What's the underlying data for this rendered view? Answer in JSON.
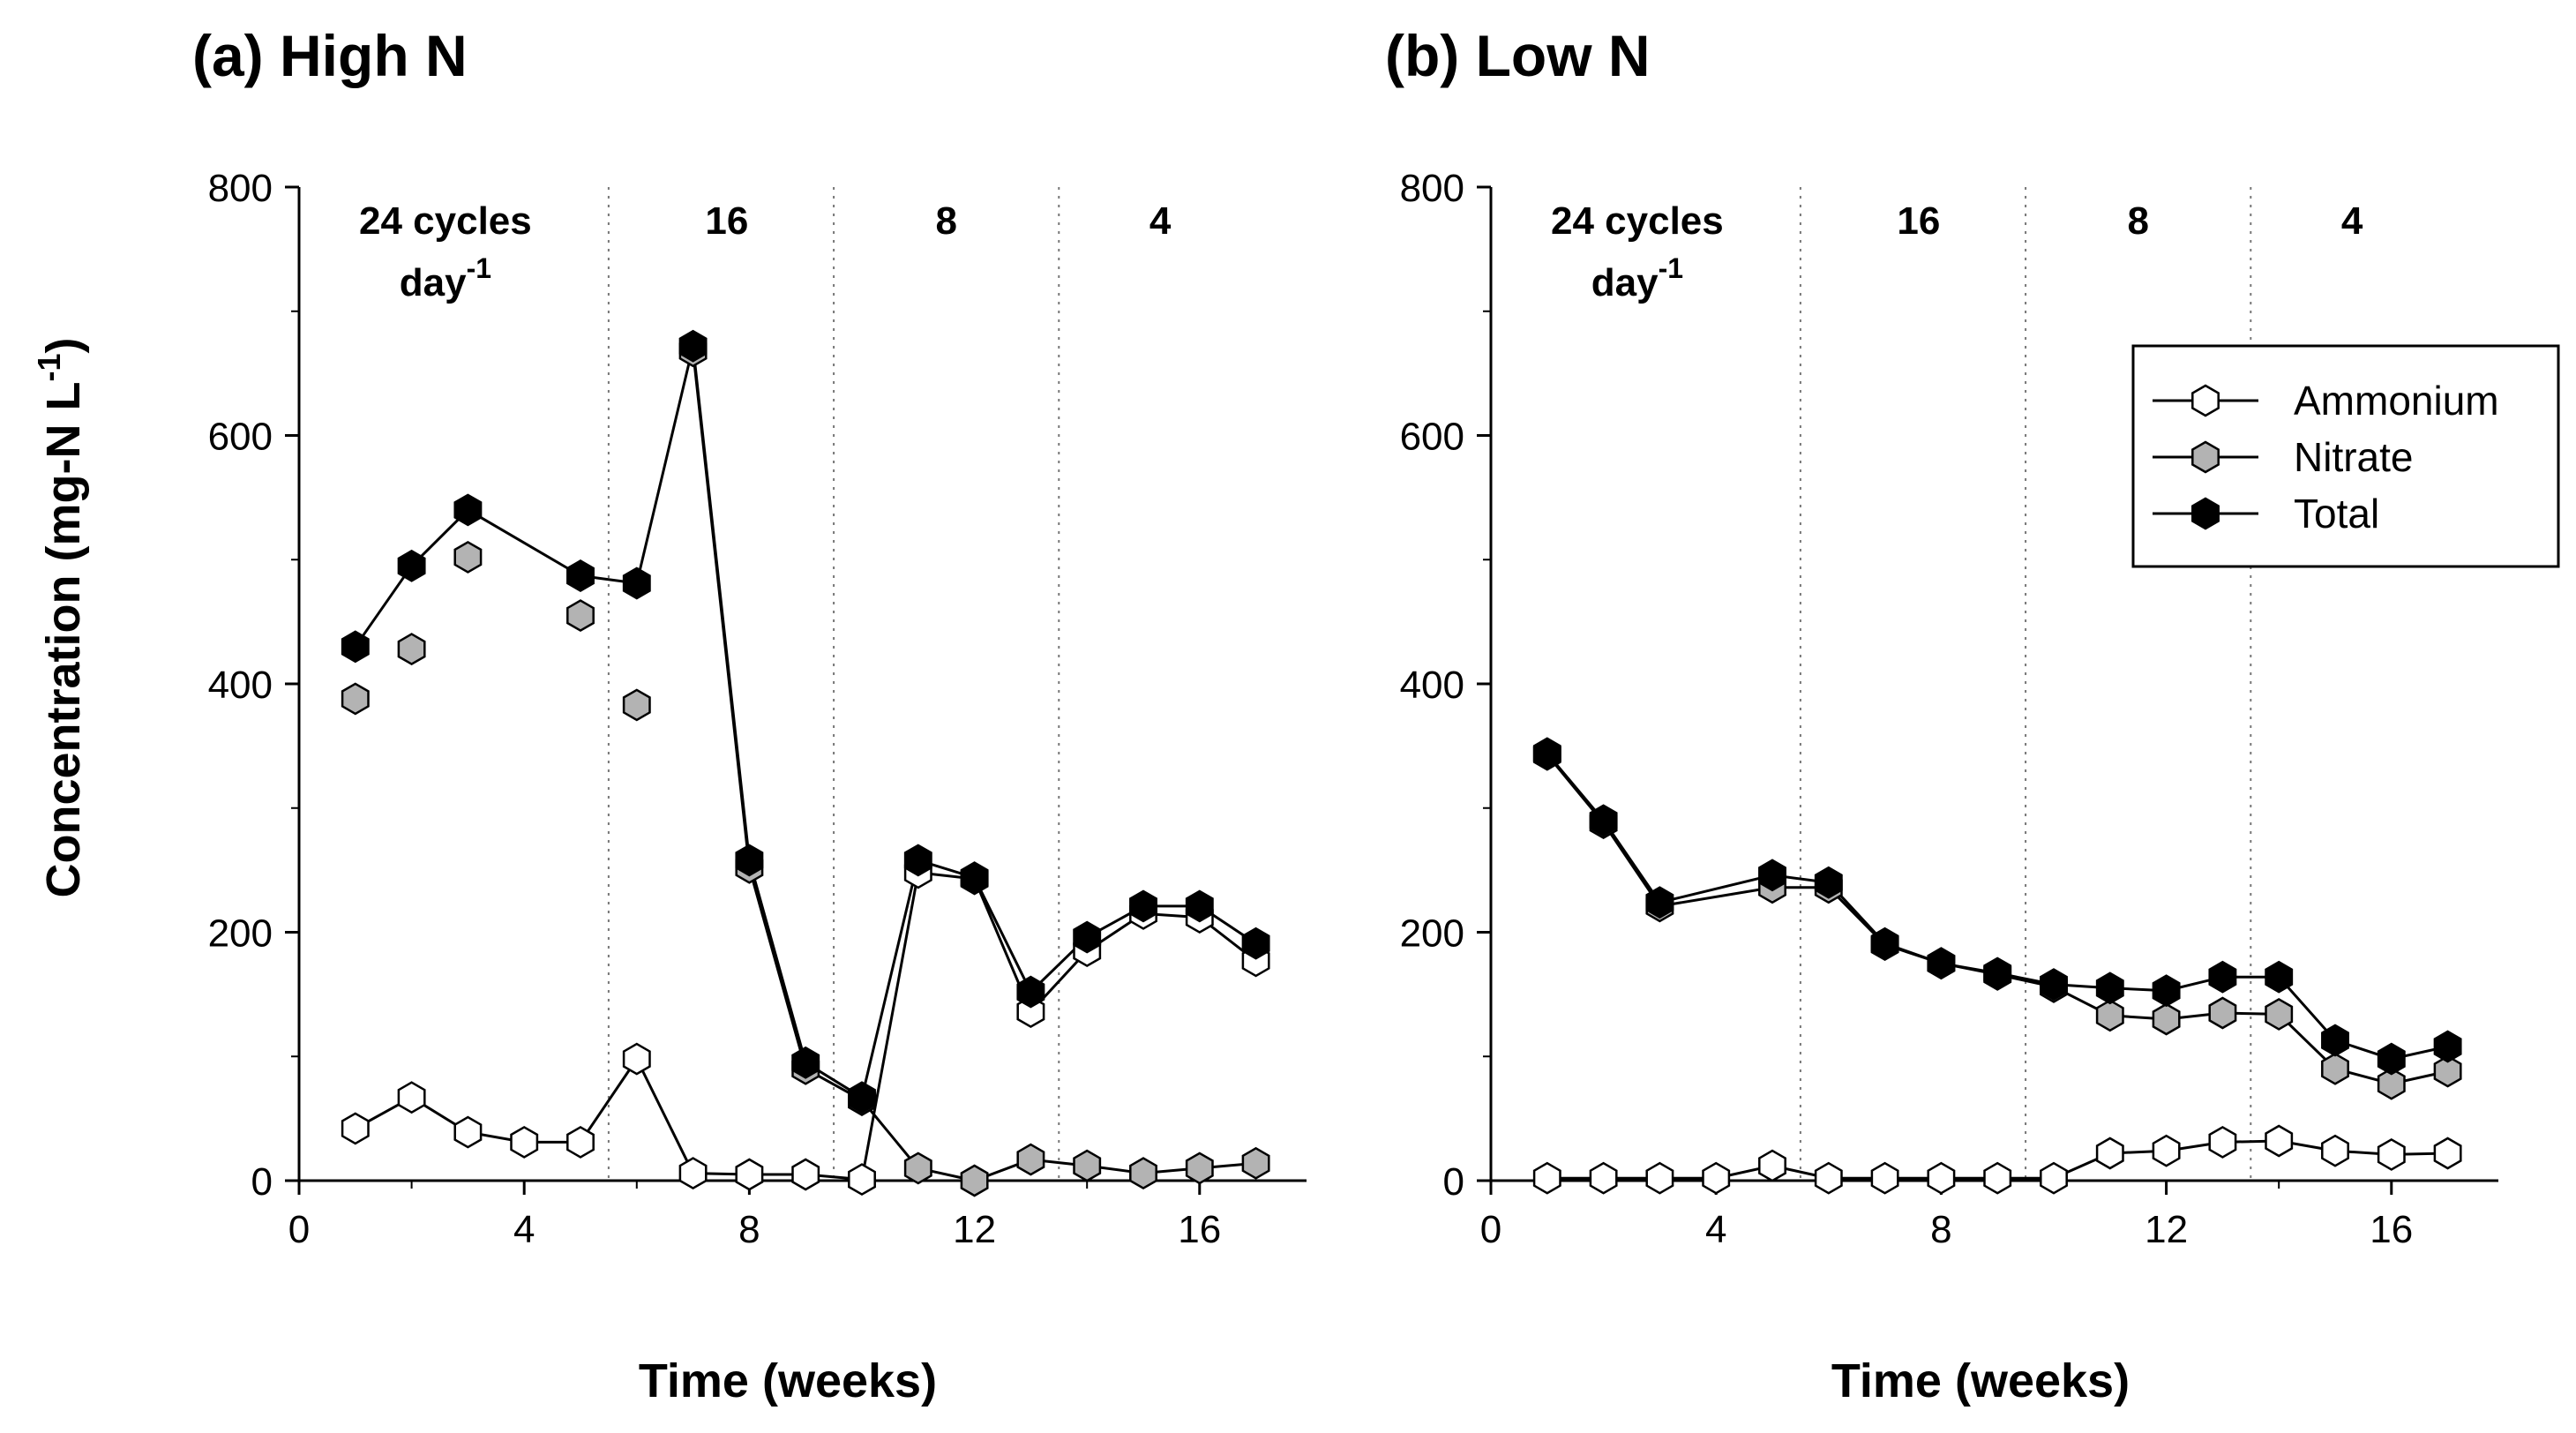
{
  "chart_data": [
    {
      "type": "line",
      "title": "(a) High N",
      "xlabel": "Time (weeks)",
      "ylabel": "Concentration (mg-N L",
      "ylabel_sup": "-1",
      "ylabel_close": ")",
      "xlim": [
        0,
        17.9
      ],
      "ylim": [
        0,
        800
      ],
      "xticks": [
        0,
        4,
        8,
        12,
        16
      ],
      "yticks": [
        0,
        200,
        400,
        600,
        800
      ],
      "phase_boundaries": [
        5.5,
        9.5,
        13.5
      ],
      "phases": [
        {
          "label": "24 cycles",
          "label2": "day",
          "sup": "-1",
          "x": 2.6
        },
        {
          "label": "16",
          "x": 7.6
        },
        {
          "label": "8",
          "x": 11.5
        },
        {
          "label": "4",
          "x": 15.3
        }
      ],
      "series": [
        {
          "name": "Ammonium",
          "fill": "#ffffff",
          "points": [
            [
              1,
              42
            ],
            [
              2,
              67
            ],
            [
              3,
              39
            ],
            [
              4,
              31
            ],
            [
              5,
              31
            ],
            [
              6,
              98
            ],
            [
              7,
              6
            ],
            [
              8,
              5
            ],
            [
              9,
              5
            ],
            [
              10,
              1
            ],
            [
              11,
              248
            ],
            [
              12,
              243
            ],
            [
              13,
              136
            ],
            [
              14,
              185
            ],
            [
              15,
              215
            ],
            [
              16,
              212
            ],
            [
              17,
              177
            ]
          ],
          "connected": true
        },
        {
          "name": "Nitrate",
          "fill": "#b3b3b3",
          "points": [
            [
              1,
              388
            ],
            [
              2,
              428
            ],
            [
              3,
              502
            ],
            [
              5,
              455
            ],
            [
              6,
              383
            ],
            [
              7,
              668
            ],
            [
              8,
              252
            ],
            [
              9,
              90
            ],
            [
              10,
              65
            ],
            [
              11,
              10
            ],
            [
              12,
              0
            ],
            [
              13,
              17
            ],
            [
              14,
              12
            ],
            [
              15,
              6
            ],
            [
              16,
              10
            ],
            [
              17,
              14
            ]
          ],
          "connected": false,
          "segments": [
            [
              7,
              8
            ],
            [
              8,
              9
            ],
            [
              9,
              10
            ],
            [
              10,
              11
            ],
            [
              11,
              12
            ],
            [
              12,
              13
            ],
            [
              13,
              14
            ],
            [
              14,
              15
            ],
            [
              15,
              16
            ],
            [
              16,
              17
            ]
          ]
        },
        {
          "name": "Total",
          "fill": "#000000",
          "points": [
            [
              1,
              430
            ],
            [
              2,
              495
            ],
            [
              3,
              540
            ],
            [
              5,
              487
            ],
            [
              6,
              481
            ],
            [
              7,
              672
            ],
            [
              8,
              258
            ],
            [
              9,
              95
            ],
            [
              10,
              67
            ],
            [
              11,
              258
            ],
            [
              12,
              244
            ],
            [
              13,
              152
            ],
            [
              14,
              196
            ],
            [
              15,
              221
            ],
            [
              16,
              221
            ],
            [
              17,
              191
            ]
          ],
          "connected": true
        }
      ]
    },
    {
      "type": "line",
      "title": "(b) Low N",
      "xlabel": "Time (weeks)",
      "xlim": [
        0,
        17.9
      ],
      "ylim": [
        0,
        800
      ],
      "xticks": [
        0,
        4,
        8,
        12,
        16
      ],
      "yticks": [
        0,
        200,
        400,
        600,
        800
      ],
      "phase_boundaries": [
        5.5,
        9.5,
        13.5
      ],
      "phases": [
        {
          "label": "24 cycles",
          "label2": "day",
          "sup": "-1",
          "x": 2.6
        },
        {
          "label": "16",
          "x": 7.6
        },
        {
          "label": "8",
          "x": 11.5
        },
        {
          "label": "4",
          "x": 15.3
        }
      ],
      "legend": {
        "position": "top-right",
        "entries": [
          "Ammonium",
          "Nitrate",
          "Total"
        ]
      },
      "series": [
        {
          "name": "Ammonium",
          "fill": "#ffffff",
          "points": [
            [
              1,
              2
            ],
            [
              2,
              2
            ],
            [
              3,
              2
            ],
            [
              4,
              2
            ],
            [
              5,
              12
            ],
            [
              6,
              2
            ],
            [
              7,
              2
            ],
            [
              8,
              2
            ],
            [
              9,
              2
            ],
            [
              10,
              2
            ],
            [
              11,
              22
            ],
            [
              12,
              24
            ],
            [
              13,
              31
            ],
            [
              14,
              32
            ],
            [
              15,
              24
            ],
            [
              16,
              21
            ],
            [
              17,
              22
            ]
          ],
          "connected": true
        },
        {
          "name": "Nitrate",
          "fill": "#b3b3b3",
          "points": [
            [
              1,
              343
            ],
            [
              2,
              288
            ],
            [
              3,
              221
            ],
            [
              5,
              236
            ],
            [
              6,
              236
            ],
            [
              7,
              190
            ],
            [
              8,
              175
            ],
            [
              9,
              166
            ],
            [
              10,
              156
            ],
            [
              11,
              133
            ],
            [
              12,
              130
            ],
            [
              13,
              135
            ],
            [
              14,
              134
            ],
            [
              15,
              90
            ],
            [
              16,
              78
            ],
            [
              17,
              88
            ]
          ],
          "connected": true
        },
        {
          "name": "Total",
          "fill": "#000000",
          "points": [
            [
              1,
              344
            ],
            [
              2,
              290
            ],
            [
              3,
              224
            ],
            [
              5,
              246
            ],
            [
              6,
              240
            ],
            [
              7,
              191
            ],
            [
              8,
              175
            ],
            [
              9,
              167
            ],
            [
              10,
              158
            ],
            [
              11,
              155
            ],
            [
              12,
              153
            ],
            [
              13,
              164
            ],
            [
              14,
              164
            ],
            [
              15,
              113
            ],
            [
              16,
              98
            ],
            [
              17,
              108
            ]
          ],
          "connected": true
        }
      ]
    }
  ]
}
